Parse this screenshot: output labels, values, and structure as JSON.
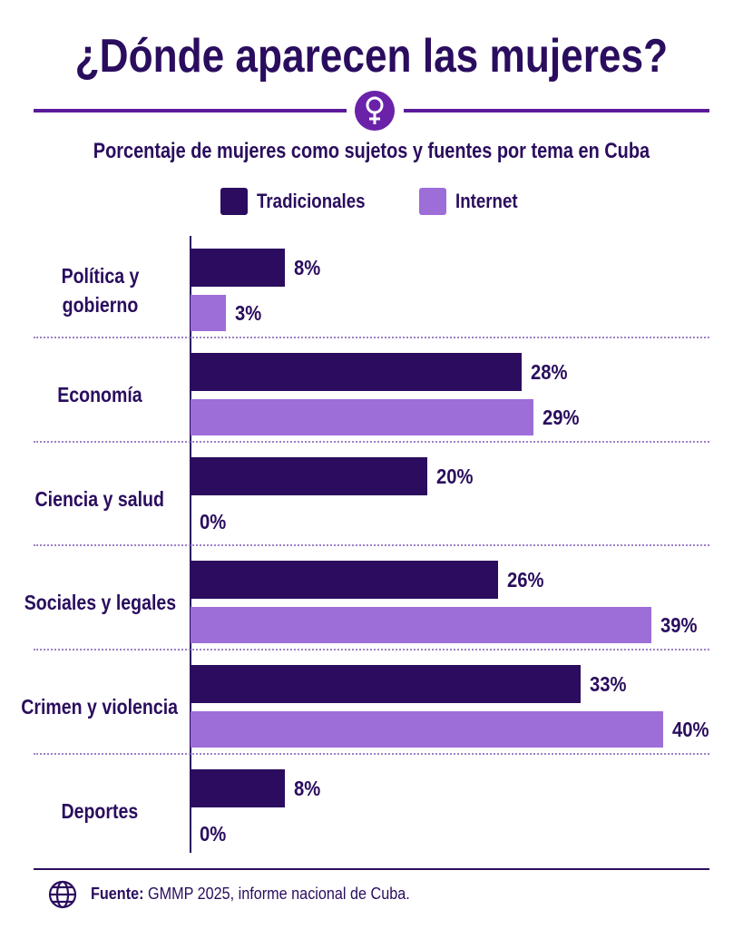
{
  "chart_data": {
    "type": "bar",
    "orientation": "horizontal",
    "title": "¿Dónde aparecen las mujeres?",
    "subtitle": "Porcentaje de mujeres como sujetos y fuentes por tema en Cuba",
    "categories": [
      "Política y\ngobierno",
      "Economía",
      "Ciencia y salud",
      "Sociales y legales",
      "Crimen y violencia",
      "Deportes"
    ],
    "series": [
      {
        "name": "Tradicionales",
        "color": "#2b0c5e",
        "values": [
          8,
          28,
          20,
          26,
          33,
          8
        ],
        "value_labels": [
          "8%",
          "28%",
          "20%",
          "26%",
          "33%",
          "8%"
        ]
      },
      {
        "name": "Internet",
        "color": "#9d6dd8",
        "values": [
          3,
          29,
          0,
          39,
          40,
          0
        ],
        "value_labels": [
          "3%",
          "29%",
          "0%",
          "39%",
          "40%",
          "0%"
        ]
      }
    ],
    "source_label": "Fuente:",
    "source": "GMMP  2025, informe nacional de Cuba."
  }
}
